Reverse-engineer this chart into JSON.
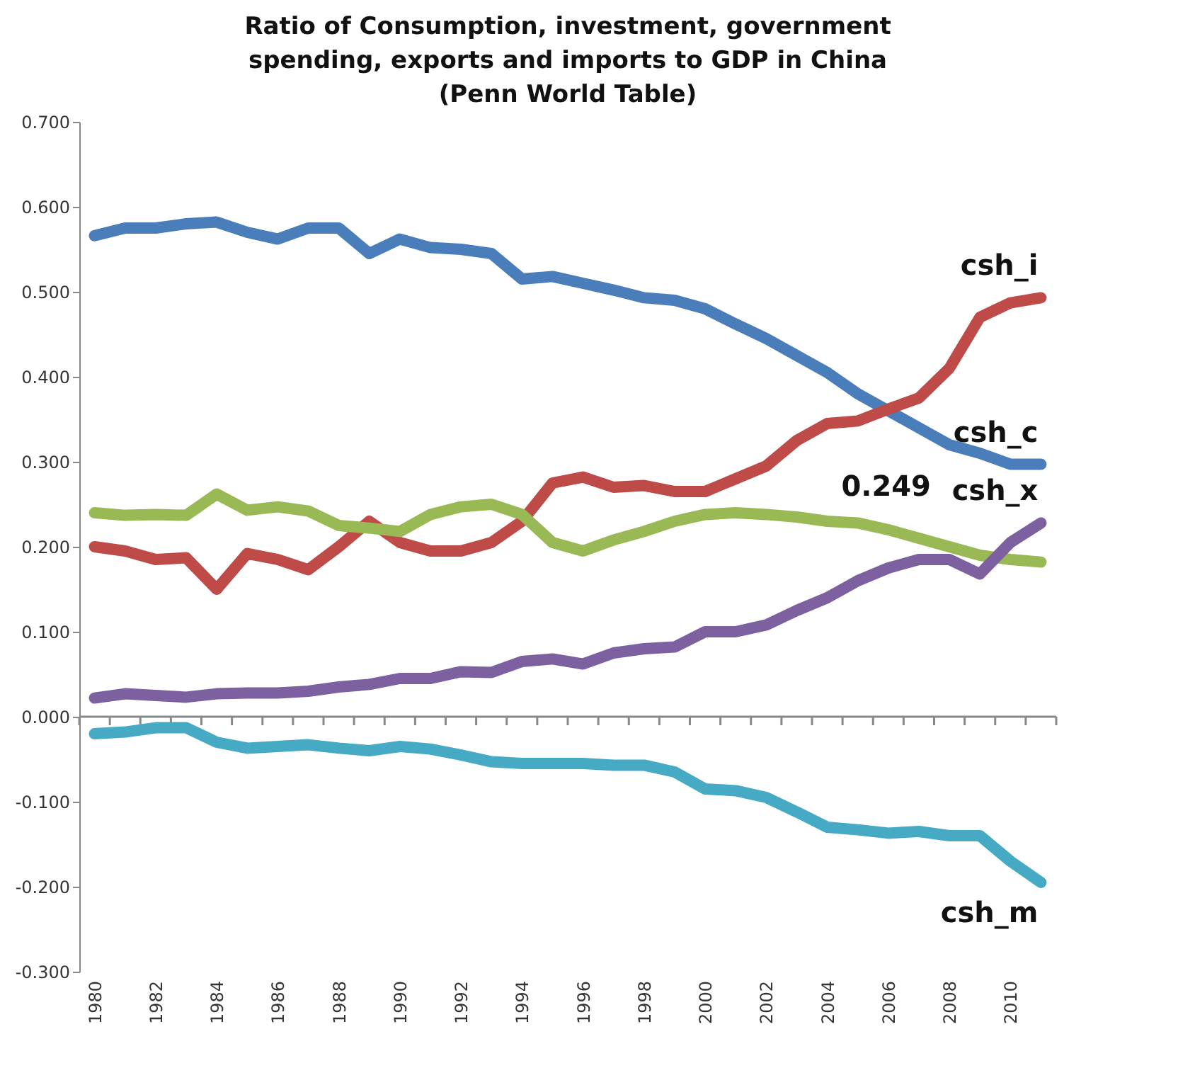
{
  "chart_data": {
    "type": "line",
    "title": "Ratio of Consumption, investment, government\nspending, exports and imports  to GDP in China\n(Penn World Table)",
    "categories": [
      "1980",
      null,
      "1982",
      null,
      "1984",
      null,
      "1986",
      null,
      "1988",
      null,
      "1990",
      null,
      "1992",
      null,
      "1994",
      null,
      "1996",
      null,
      "1998",
      null,
      "2000",
      null,
      "2002",
      null,
      "2004",
      null,
      "2006",
      null,
      "2008",
      null,
      "2010",
      null
    ],
    "series": [
      {
        "name": "csh_c",
        "color": "#4a7ebb",
        "values": [
          0.566,
          0.575,
          0.575,
          0.58,
          0.582,
          0.57,
          0.562,
          0.575,
          0.575,
          0.545,
          0.562,
          0.552,
          0.55,
          0.545,
          0.515,
          0.518,
          0.51,
          0.502,
          0.493,
          0.49,
          0.48,
          0.462,
          0.445,
          0.425,
          0.405,
          0.38,
          0.36,
          0.34,
          0.32,
          0.31,
          0.297,
          0.297
        ]
      },
      {
        "name": "csh_i",
        "color": "#be4b48",
        "values": [
          0.2,
          0.195,
          0.185,
          0.187,
          0.15,
          0.192,
          0.185,
          0.173,
          0.2,
          0.23,
          0.205,
          0.195,
          0.195,
          0.205,
          0.23,
          0.275,
          0.282,
          0.27,
          0.272,
          0.265,
          0.265,
          0.28,
          0.295,
          0.325,
          0.345,
          0.348,
          0.362,
          0.375,
          0.41,
          0.47,
          0.487,
          0.493
        ]
      },
      {
        "color": "#98b954",
        "values": [
          0.24,
          0.237,
          0.238,
          0.237,
          0.262,
          0.243,
          0.247,
          0.242,
          0.225,
          0.222,
          0.218,
          0.238,
          0.247,
          0.25,
          0.238,
          0.205,
          0.195,
          0.208,
          0.218,
          0.23,
          0.238,
          0.24,
          0.238,
          0.235,
          0.23,
          0.228,
          0.22,
          0.21,
          0.2,
          0.19,
          0.185,
          0.182
        ]
      },
      {
        "name": "csh_x",
        "color": "#7d60a0",
        "values": [
          0.022,
          0.027,
          0.025,
          0.023,
          0.027,
          0.028,
          0.028,
          0.03,
          0.035,
          0.038,
          0.045,
          0.045,
          0.053,
          0.052,
          0.065,
          0.068,
          0.062,
          0.075,
          0.08,
          0.082,
          0.1,
          0.1,
          0.108,
          0.125,
          0.14,
          0.16,
          0.175,
          0.185,
          0.185,
          0.168,
          0.205,
          0.228
        ]
      },
      {
        "name": "csh_m",
        "color": "#46aac5",
        "values": [
          -0.02,
          -0.018,
          -0.013,
          -0.013,
          -0.03,
          -0.037,
          -0.035,
          -0.033,
          -0.037,
          -0.04,
          -0.035,
          -0.038,
          -0.045,
          -0.053,
          -0.055,
          -0.055,
          -0.055,
          -0.057,
          -0.057,
          -0.065,
          -0.085,
          -0.087,
          -0.095,
          -0.112,
          -0.13,
          -0.133,
          -0.137,
          -0.135,
          -0.14,
          -0.14,
          -0.17,
          -0.195
        ]
      }
    ],
    "annotations": [
      "0.249"
    ],
    "ylim": [
      -0.3,
      0.7
    ],
    "yticks": [
      {
        "value": -0.3,
        "label": "-0.300"
      },
      {
        "value": -0.2,
        "label": "-0.200"
      },
      {
        "value": -0.1,
        "label": "-0.100"
      },
      {
        "value": 0,
        "label": "0.000"
      },
      {
        "value": 0.1,
        "label": "0.100"
      },
      {
        "value": 0.2,
        "label": "0.200"
      },
      {
        "value": 0.3,
        "label": "0.300"
      },
      {
        "value": 0.4,
        "label": "0.400"
      },
      {
        "value": 0.5,
        "label": "0.500"
      },
      {
        "value": 0.6,
        "label": "0.600"
      },
      {
        "value": 0.7,
        "label": "0.700"
      }
    ],
    "marker": "none",
    "line_style": "solid"
  }
}
